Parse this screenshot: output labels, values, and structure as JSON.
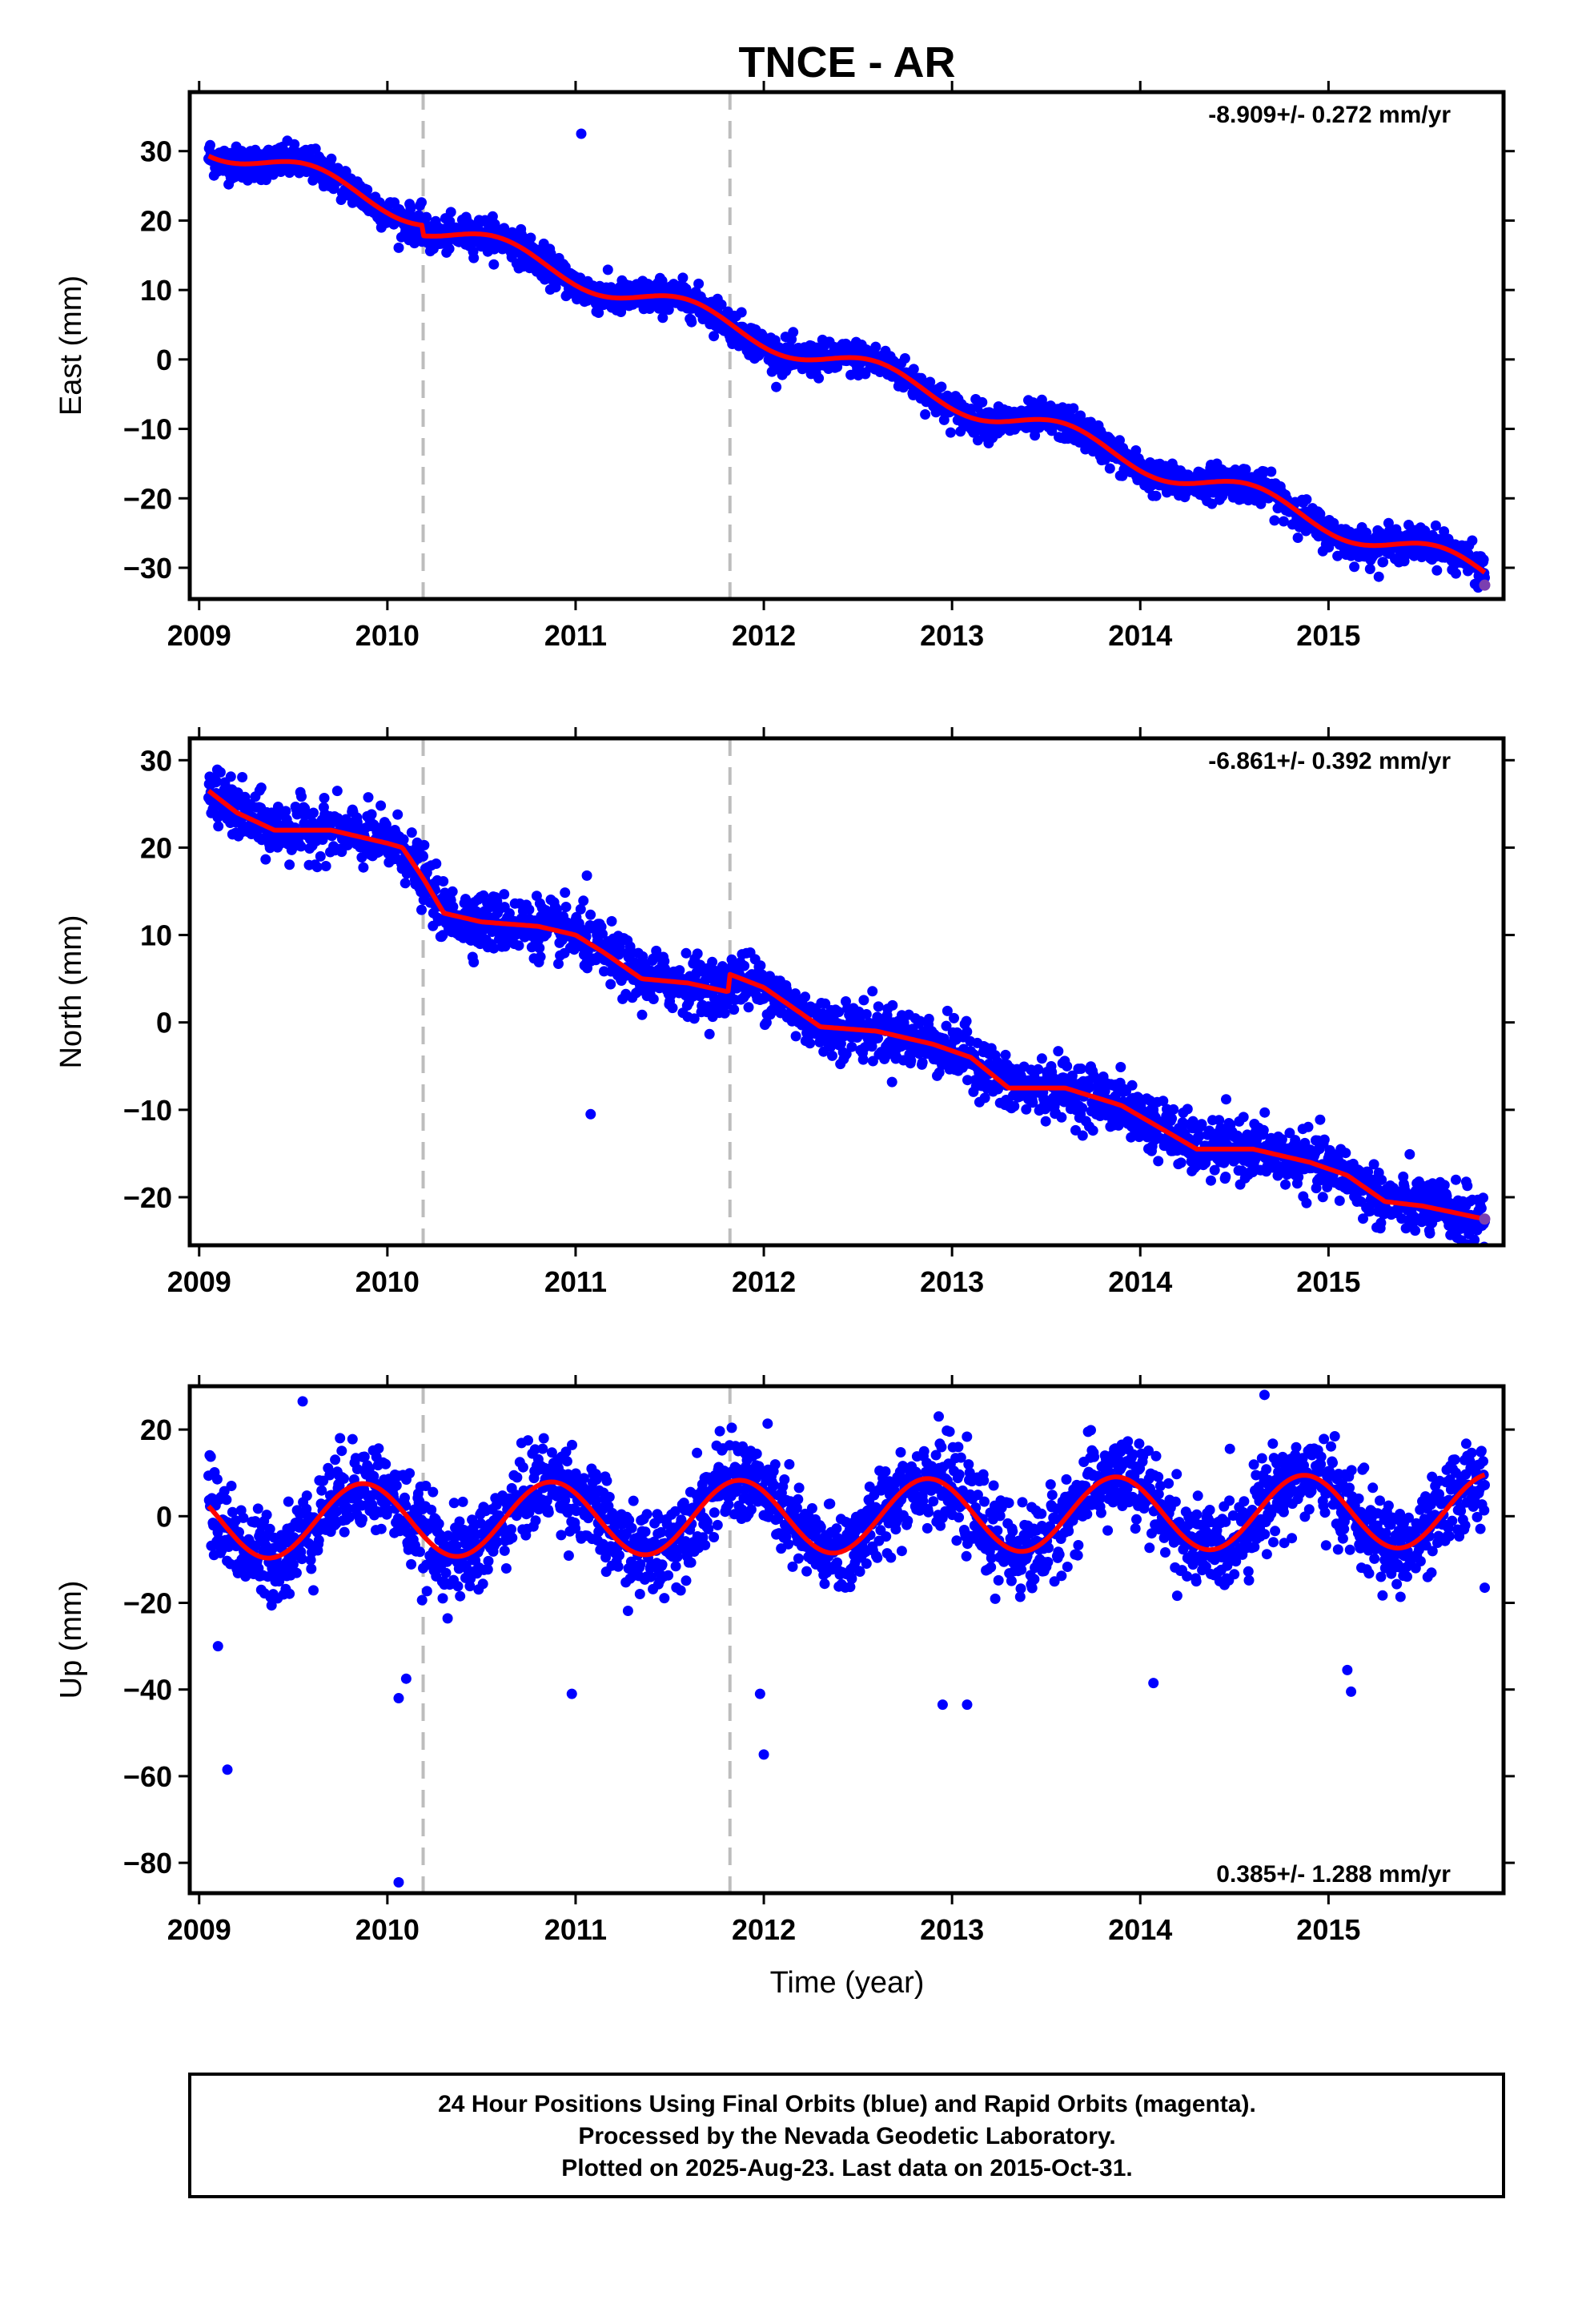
{
  "chart_data": [
    {
      "type": "scatter",
      "title": "TNCE - AR",
      "ylabel": "East (mm)",
      "xlabel": "",
      "xlim": [
        2008.95,
        2015.93
      ],
      "ylim": [
        -34.5,
        38.5
      ],
      "xticks": [
        2009,
        2010,
        2011,
        2012,
        2013,
        2014,
        2015
      ],
      "yticks": [
        -30,
        -20,
        -10,
        0,
        10,
        20,
        30
      ],
      "rate_text": "-8.909+/- 0.272 mm/yr",
      "rate_position": "top-right",
      "offsets": [
        2010.19,
        2011.82
      ],
      "series": [
        {
          "kind": "points",
          "color": "#0000ff",
          "x_start": 2009.05,
          "x_end": 2015.83,
          "base": {
            "intercept": 31.0,
            "rate": -8.909,
            "t0": 2009.05
          },
          "seasonal_amp": 1.8,
          "seasonal_phase": 0.35,
          "scatter_sd": 1.2,
          "steps": [
            {
              "at": 2010.19,
              "size": -1.5
            }
          ],
          "outliers": [
            {
              "x": 2011.03,
              "y": 32.5
            }
          ]
        },
        {
          "kind": "model",
          "color": "#ff0000",
          "x_start": 2009.05,
          "x_end": 2015.83,
          "base": {
            "intercept": 31.0,
            "rate": -8.909,
            "t0": 2009.05
          },
          "seasonal_amp": 1.8,
          "seasonal_phase": 0.35,
          "steps": [
            {
              "at": 2010.19,
              "size": -1.5
            }
          ]
        }
      ],
      "end_point": {
        "x": 2015.83,
        "y": -32.5,
        "color": "#7b3fb0"
      }
    },
    {
      "type": "scatter",
      "title": "",
      "ylabel": "North (mm)",
      "xlabel": "",
      "xlim": [
        2008.95,
        2015.93
      ],
      "ylim": [
        -25.5,
        32.5
      ],
      "xticks": [
        2009,
        2010,
        2011,
        2012,
        2013,
        2014,
        2015
      ],
      "yticks": [
        -20,
        -10,
        0,
        10,
        20,
        30
      ],
      "rate_text": "-6.861+/- 0.392 mm/yr",
      "rate_position": "top-right",
      "offsets": [
        2010.19,
        2011.82
      ],
      "series": [
        {
          "kind": "points",
          "color": "#0000ff",
          "x_start": 2009.05,
          "x_end": 2015.83,
          "model_knots": [
            [
              2009.05,
              26.5
            ],
            [
              2009.2,
              24.0
            ],
            [
              2009.4,
              22.0
            ],
            [
              2009.7,
              22.0
            ],
            [
              2010.0,
              20.5
            ],
            [
              2010.08,
              20.0
            ],
            [
              2010.19,
              16.5
            ],
            [
              2010.3,
              12.5
            ],
            [
              2010.5,
              11.5
            ],
            [
              2010.8,
              11.0
            ],
            [
              2011.0,
              10.0
            ],
            [
              2011.15,
              8.0
            ],
            [
              2011.35,
              5.0
            ],
            [
              2011.6,
              4.5
            ],
            [
              2011.81,
              3.5
            ],
            [
              2011.82,
              5.5
            ],
            [
              2012.0,
              4.0
            ],
            [
              2012.3,
              -0.5
            ],
            [
              2012.6,
              -1.0
            ],
            [
              2012.9,
              -2.5
            ],
            [
              2013.1,
              -4.0
            ],
            [
              2013.3,
              -7.5
            ],
            [
              2013.6,
              -7.5
            ],
            [
              2013.9,
              -9.5
            ],
            [
              2014.1,
              -12.0
            ],
            [
              2014.3,
              -14.5
            ],
            [
              2014.6,
              -14.5
            ],
            [
              2014.9,
              -16.0
            ],
            [
              2015.1,
              -17.5
            ],
            [
              2015.3,
              -20.5
            ],
            [
              2015.5,
              -21.0
            ],
            [
              2015.83,
              -22.5
            ]
          ],
          "scatter_sd": 1.6,
          "outliers": [
            {
              "x": 2011.08,
              "y": -10.5
            },
            {
              "x": 2011.06,
              "y": 16.8
            }
          ]
        },
        {
          "kind": "model",
          "color": "#ff0000",
          "x_start": 2009.05,
          "x_end": 2015.83,
          "model_knots": [
            [
              2009.05,
              26.5
            ],
            [
              2009.2,
              24.0
            ],
            [
              2009.4,
              22.0
            ],
            [
              2009.7,
              22.0
            ],
            [
              2010.0,
              20.5
            ],
            [
              2010.08,
              20.0
            ],
            [
              2010.19,
              16.5
            ],
            [
              2010.3,
              12.5
            ],
            [
              2010.5,
              11.5
            ],
            [
              2010.8,
              11.0
            ],
            [
              2011.0,
              10.0
            ],
            [
              2011.15,
              8.0
            ],
            [
              2011.35,
              5.0
            ],
            [
              2011.6,
              4.5
            ],
            [
              2011.81,
              3.5
            ],
            [
              2011.82,
              5.5
            ],
            [
              2012.0,
              4.0
            ],
            [
              2012.3,
              -0.5
            ],
            [
              2012.6,
              -1.0
            ],
            [
              2012.9,
              -2.5
            ],
            [
              2013.1,
              -4.0
            ],
            [
              2013.3,
              -7.5
            ],
            [
              2013.6,
              -7.5
            ],
            [
              2013.9,
              -9.5
            ],
            [
              2014.1,
              -12.0
            ],
            [
              2014.3,
              -14.5
            ],
            [
              2014.6,
              -14.5
            ],
            [
              2014.9,
              -16.0
            ],
            [
              2015.1,
              -17.5
            ],
            [
              2015.3,
              -20.5
            ],
            [
              2015.5,
              -21.0
            ],
            [
              2015.83,
              -22.5
            ]
          ]
        }
      ],
      "end_point": {
        "x": 2015.83,
        "y": -22.5,
        "color": "#7b3fb0"
      }
    },
    {
      "type": "scatter",
      "title": "",
      "ylabel": "Up (mm)",
      "xlabel": "Time (year)",
      "xlim": [
        2008.95,
        2015.93
      ],
      "ylim": [
        -87,
        30
      ],
      "xticks": [
        2009,
        2010,
        2011,
        2012,
        2013,
        2014,
        2015
      ],
      "yticks": [
        -80,
        -60,
        -40,
        -20,
        0,
        20
      ],
      "rate_text": "0.385+/- 1.288 mm/yr",
      "rate_position": "bottom-right",
      "offsets": [
        2010.19,
        2011.82
      ],
      "series": [
        {
          "kind": "points",
          "color": "#0000ff",
          "x_start": 2009.05,
          "x_end": 2015.83,
          "base": {
            "intercept": 0.0,
            "rate": 0.385,
            "t0": 2012.4
          },
          "seasonal_amp": 8.5,
          "seasonal_phase": -0.38,
          "scatter_sd": 5.0,
          "outliers": [
            {
              "x": 2009.15,
              "y": -58.5
            },
            {
              "x": 2010.06,
              "y": -84.5
            },
            {
              "x": 2010.06,
              "y": -42.0
            },
            {
              "x": 2010.1,
              "y": -37.5
            },
            {
              "x": 2010.98,
              "y": -41.0
            },
            {
              "x": 2012.0,
              "y": -55.0
            },
            {
              "x": 2011.98,
              "y": -41.0
            },
            {
              "x": 2012.95,
              "y": -43.5
            },
            {
              "x": 2013.08,
              "y": -43.5
            },
            {
              "x": 2014.07,
              "y": -38.5
            },
            {
              "x": 2015.12,
              "y": -40.5
            },
            {
              "x": 2015.1,
              "y": -35.5
            },
            {
              "x": 2014.66,
              "y": 28.0
            },
            {
              "x": 2009.55,
              "y": 26.5
            },
            {
              "x": 2009.1,
              "y": -30.0
            },
            {
              "x": 2015.83,
              "y": -16.5
            }
          ]
        },
        {
          "kind": "model",
          "color": "#ff0000",
          "x_start": 2009.05,
          "x_end": 2015.83,
          "base": {
            "intercept": 0.0,
            "rate": 0.385,
            "t0": 2012.4
          },
          "seasonal_amp": 8.5,
          "seasonal_phase": -0.38
        }
      ]
    }
  ],
  "footer": {
    "line1": "24 Hour Positions Using Final Orbits (blue) and Rapid Orbits (magenta).",
    "line2": "Processed by the Nevada Geodetic Laboratory.",
    "line3": "Plotted on 2025-Aug-23. Last data on 2015-Oct-31."
  }
}
